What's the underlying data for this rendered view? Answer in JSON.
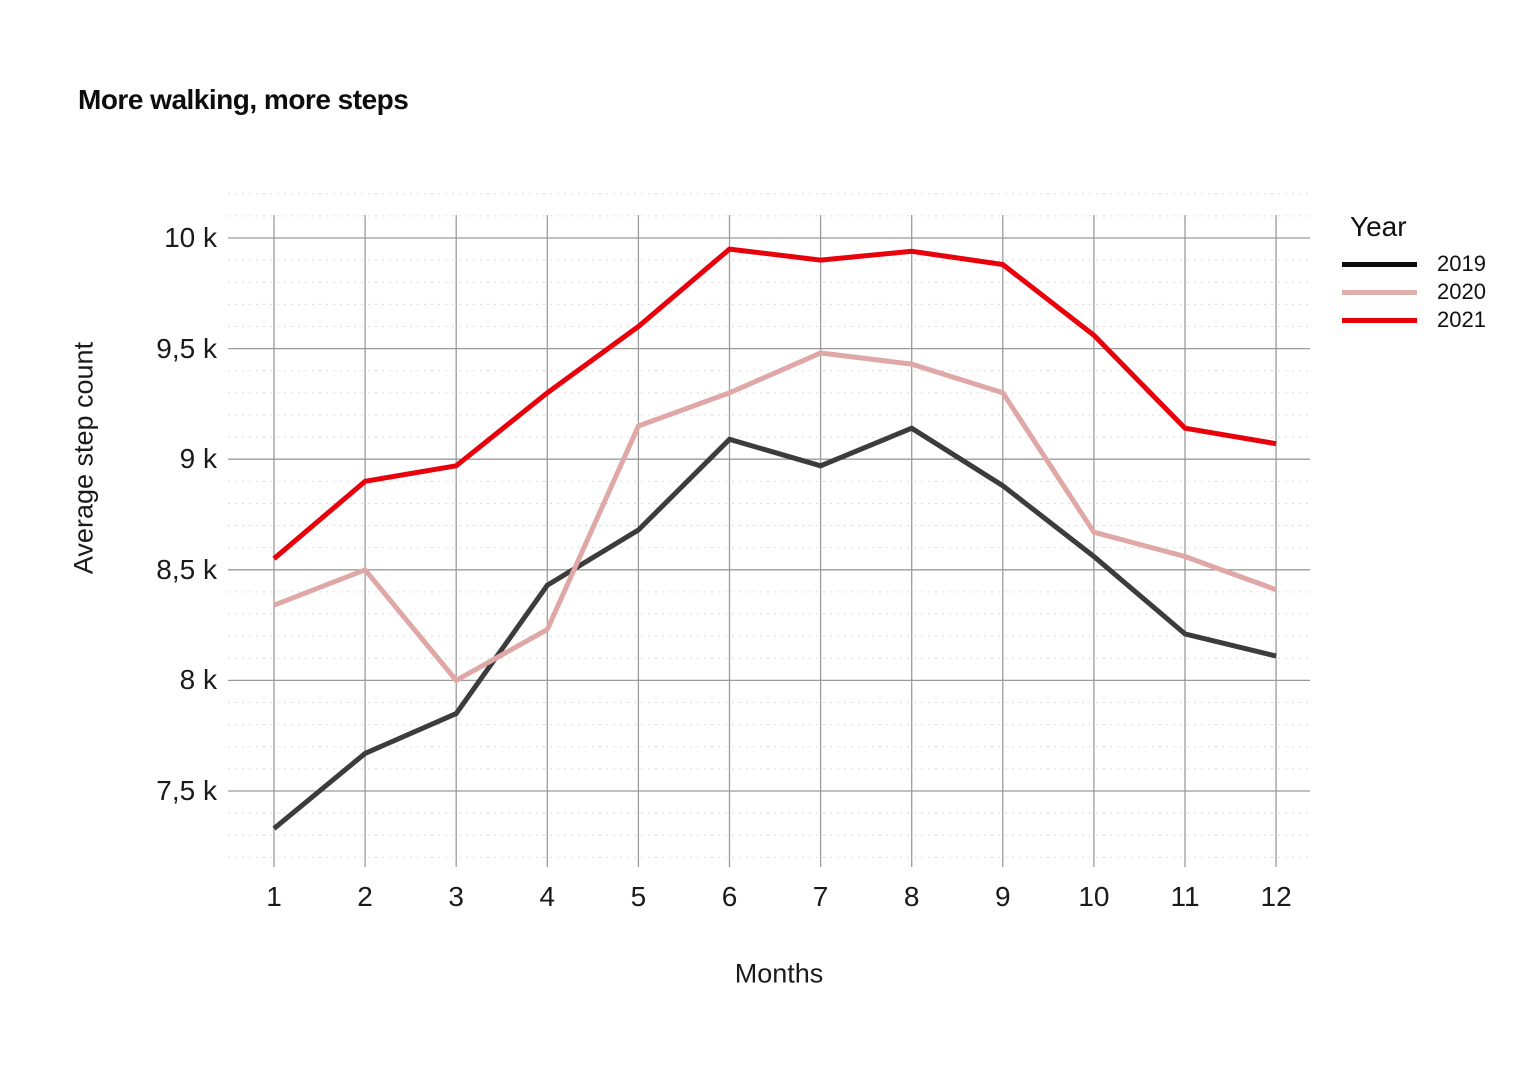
{
  "chart_data": {
    "type": "line",
    "title": "More walking, more steps",
    "xlabel": "Months",
    "ylabel": "Average step count",
    "legend_title": "Year",
    "legend_position": "right",
    "x": [
      1,
      2,
      3,
      4,
      5,
      6,
      7,
      8,
      9,
      10,
      11,
      12
    ],
    "xtick_labels": [
      "1",
      "2",
      "3",
      "4",
      "5",
      "6",
      "7",
      "8",
      "9",
      "10",
      "11",
      "12"
    ],
    "yticks": [
      {
        "value": 7500,
        "label": "7,5 k"
      },
      {
        "value": 8000,
        "label": "8 k"
      },
      {
        "value": 8500,
        "label": "8,5 k"
      },
      {
        "value": 9000,
        "label": "9 k"
      },
      {
        "value": 9500,
        "label": "9,5 k"
      },
      {
        "value": 10000,
        "label": "10 k"
      }
    ],
    "ylim": [
      7200,
      10200
    ],
    "grid": {
      "major_horizontal": true,
      "vertical_per_month": true,
      "minor_horizontal_dotted": true,
      "minor_step": 100
    },
    "series": [
      {
        "name": "2019",
        "color": "#3c3c3c",
        "legend_color": "#0d0d0d",
        "values": [
          7330,
          7670,
          7850,
          8430,
          8680,
          9090,
          8970,
          9140,
          8880,
          8560,
          8210,
          8110
        ]
      },
      {
        "name": "2020",
        "color": "#dfa8a6",
        "legend_color": "#ddafad",
        "values": [
          8340,
          8500,
          8000,
          8230,
          9150,
          9300,
          9480,
          9430,
          9300,
          8670,
          8560,
          8410
        ]
      },
      {
        "name": "2021",
        "color": "#e8000b",
        "legend_color": "#e60008",
        "values": [
          8550,
          8900,
          8970,
          9300,
          9600,
          9950,
          9900,
          9940,
          9880,
          9560,
          9140,
          9070
        ]
      }
    ],
    "colors": {
      "grid_major": "#9b9b9b",
      "grid_minor": "#d9d9d9",
      "text": "#111111"
    }
  }
}
